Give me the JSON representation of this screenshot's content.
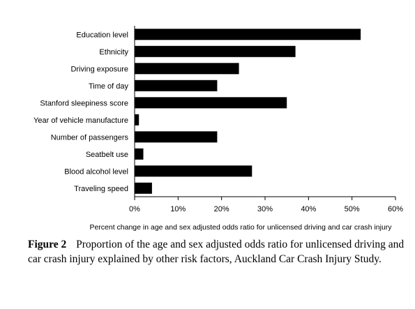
{
  "chart_data": {
    "type": "bar",
    "orientation": "horizontal",
    "categories": [
      "Education level",
      "Ethnicity",
      "Driving exposure",
      "Time of day",
      "Stanford sleepiness score",
      "Year of vehicle manufacture",
      "Number of passengers",
      "Seatbelt use",
      "Blood alcohol level",
      "Traveling speed"
    ],
    "values": [
      52,
      37,
      24,
      19,
      35,
      1,
      19,
      2,
      27,
      4
    ],
    "xlabel": "Percent change in age and sex adjusted odds ratio for unlicensed driving and car crash injury",
    "xlim": [
      0,
      60
    ],
    "xticks": [
      "0%",
      "10%",
      "20%",
      "30%",
      "40%",
      "50%",
      "60%"
    ],
    "grid": false,
    "bar_color": "#000000"
  },
  "caption": {
    "label": "Figure 2",
    "text": "Proportion of the age and sex adjusted odds ratio for unlicensed driving and car crash injury explained by other risk factors, Auckland Car Crash Injury Study."
  }
}
